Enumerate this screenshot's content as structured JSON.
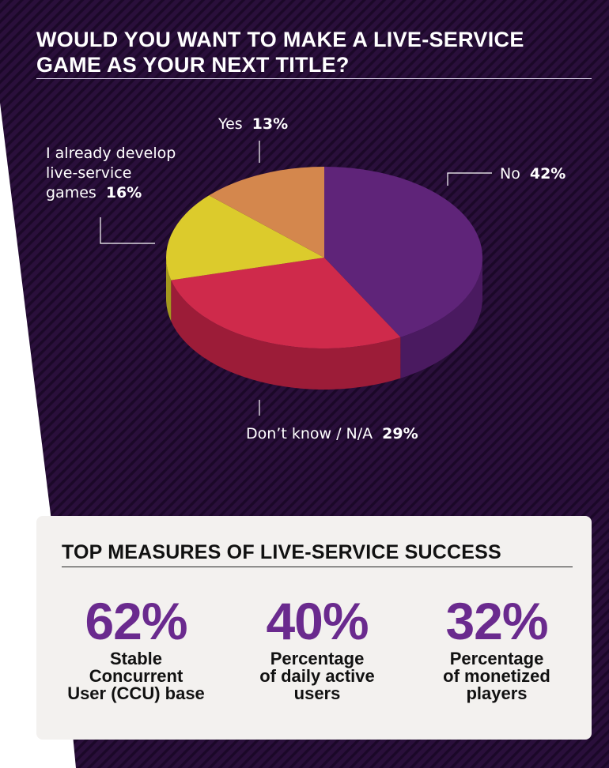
{
  "chart_data": {
    "type": "pie",
    "title": "WOULD YOU WANT TO MAKE A LIVE-SERVICE GAME AS YOUR NEXT TITLE?",
    "slices": [
      {
        "label": "No",
        "value": 42,
        "value_label": "42%",
        "color": "#5f2479",
        "side_color": "#4a1a60"
      },
      {
        "label": "Don’t know / N/A",
        "value": 29,
        "value_label": "29%",
        "color": "#cf2a4b",
        "side_color": "#9c1c38"
      },
      {
        "label": "I already develop\nlive-service\ngames",
        "value": 16,
        "value_label": "16%",
        "color": "#dccb2c",
        "side_color": "#a5981f"
      },
      {
        "label": "Yes",
        "value": 13,
        "value_label": "13%",
        "color": "#d4874d",
        "side_color": "#a3653a"
      }
    ]
  },
  "measures": {
    "title": "TOP MEASURES OF LIVE-SERVICE SUCCESS",
    "items": [
      {
        "value": "62%",
        "label": "Stable\nConcurrent\nUser (CCU) base"
      },
      {
        "value": "40%",
        "label": "Percentage\nof daily active\nusers"
      },
      {
        "value": "32%",
        "label": "Percentage\nof monetized\nplayers"
      }
    ]
  },
  "colors": {
    "background": "#2a0f3b",
    "accent": "#6a2a8e",
    "card": "#f3f1ef"
  }
}
